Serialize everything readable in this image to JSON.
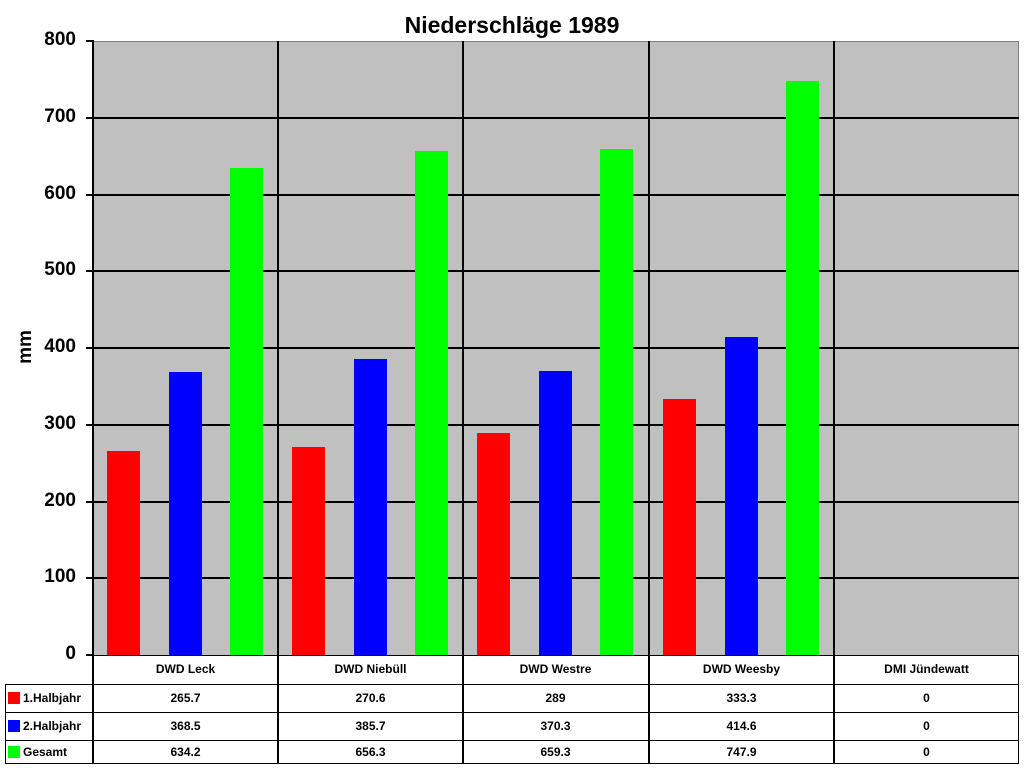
{
  "chart_data": {
    "type": "bar",
    "title": "Niederschläge 1989",
    "xlabel": "",
    "ylabel": "mm",
    "ylim": [
      0,
      800
    ],
    "yticks": [
      0,
      100,
      200,
      300,
      400,
      500,
      600,
      700,
      800
    ],
    "grid": true,
    "legend_position": "data-table-left",
    "categories": [
      "DWD Leck",
      "DWD Niebüll",
      "DWD Westre",
      "DWD Weesby",
      "DMI Jündewatt"
    ],
    "series": [
      {
        "name": "1.Halbjahr",
        "color": "#ff0000",
        "values": [
          265.7,
          270.6,
          289,
          333.3,
          0
        ],
        "labels": [
          "265.7",
          "270.6",
          "289",
          "333.3",
          "0"
        ]
      },
      {
        "name": "2.Halbjahr",
        "color": "#0000ff",
        "values": [
          368.5,
          385.7,
          370.3,
          414.6,
          0
        ],
        "labels": [
          "368.5",
          "385.7",
          "370.3",
          "414.6",
          "0"
        ]
      },
      {
        "name": "Gesamt",
        "color": "#00ff00",
        "values": [
          634.2,
          656.3,
          659.3,
          747.9,
          0
        ],
        "labels": [
          "634.2",
          "656.3",
          "659.3",
          "747.9",
          "0"
        ]
      }
    ]
  },
  "colors": {
    "plot_background": "#c0c0c0",
    "gridline": "#000000"
  }
}
